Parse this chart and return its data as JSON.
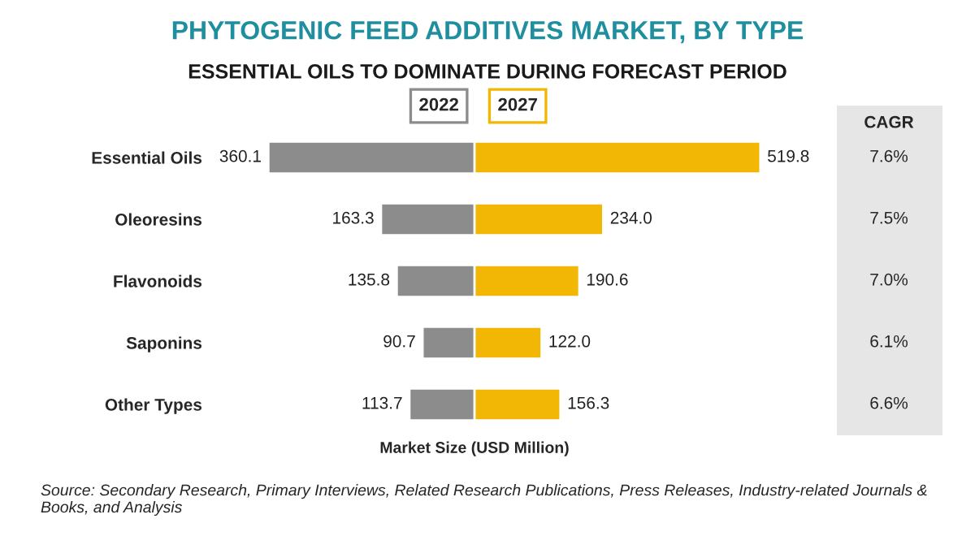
{
  "chart_data": [
    {
      "type": "bar",
      "title": "PHYTOGENIC FEED ADDITIVES MARKET, BY TYPE",
      "subtitle": "ESSENTIAL OILS TO DOMINATE DURING FORECAST PERIOD",
      "xlabel": "Market Size (USD Million)",
      "orientation": "horizontal",
      "categories": [
        "Essential Oils",
        "Oleoresins",
        "Flavonoids",
        "Saponins",
        "Other Types"
      ],
      "series": [
        {
          "name": "2022",
          "color": "#8c8c8c",
          "values": [
            360.1,
            163.3,
            135.8,
            90.7,
            113.7
          ]
        }
      ],
      "tick_labels": "y",
      "data_labels": true,
      "annotations": [
        "CAGR",
        "7.6%",
        "7.5%",
        "7.0%",
        "6.1%",
        "6.6%",
        "Source: Secondary Research, Primary Interviews, Related Research Publications, Press Releases, Industry-related Journals & Books, and Analysis"
      ]
    },
    {
      "type": "bar",
      "orientation": "horizontal",
      "series": [
        {
          "name": "2027",
          "color": "#f2b705",
          "values": [
            519.8,
            234.0,
            190.6,
            122.0,
            156.3
          ],
          "value_labels": [
            "519.8",
            "234.0",
            "190.6",
            "122.0",
            "156.3"
          ]
        }
      ],
      "tick_labels": false
    }
  ]
}
